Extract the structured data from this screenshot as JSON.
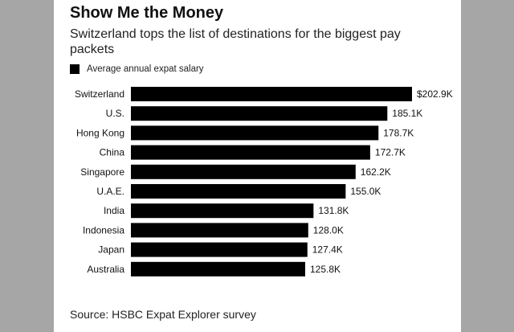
{
  "chart_data": {
    "type": "bar",
    "orientation": "horizontal",
    "title": "Show Me the Money",
    "subtitle": "Switzerland tops the list of destinations for the biggest pay packets",
    "legend": [
      "Average annual expat salary"
    ],
    "categories": [
      "Switzerland",
      "U.S.",
      "Hong Kong",
      "China",
      "Singapore",
      "U.A.E.",
      "India",
      "Indonesia",
      "Japan",
      "Australia"
    ],
    "values": [
      202.9,
      185.1,
      178.7,
      172.7,
      162.2,
      155.0,
      131.8,
      128.0,
      127.4,
      125.8
    ],
    "value_labels": [
      "$202.9K",
      "185.1K",
      "178.7K",
      "172.7K",
      "162.2K",
      "155.0K",
      "131.8K",
      "128.0K",
      "127.4K",
      "125.8K"
    ],
    "unit": "K USD",
    "bar_color": "#000000",
    "source": "Source: HSBC Expat Explorer survey"
  }
}
